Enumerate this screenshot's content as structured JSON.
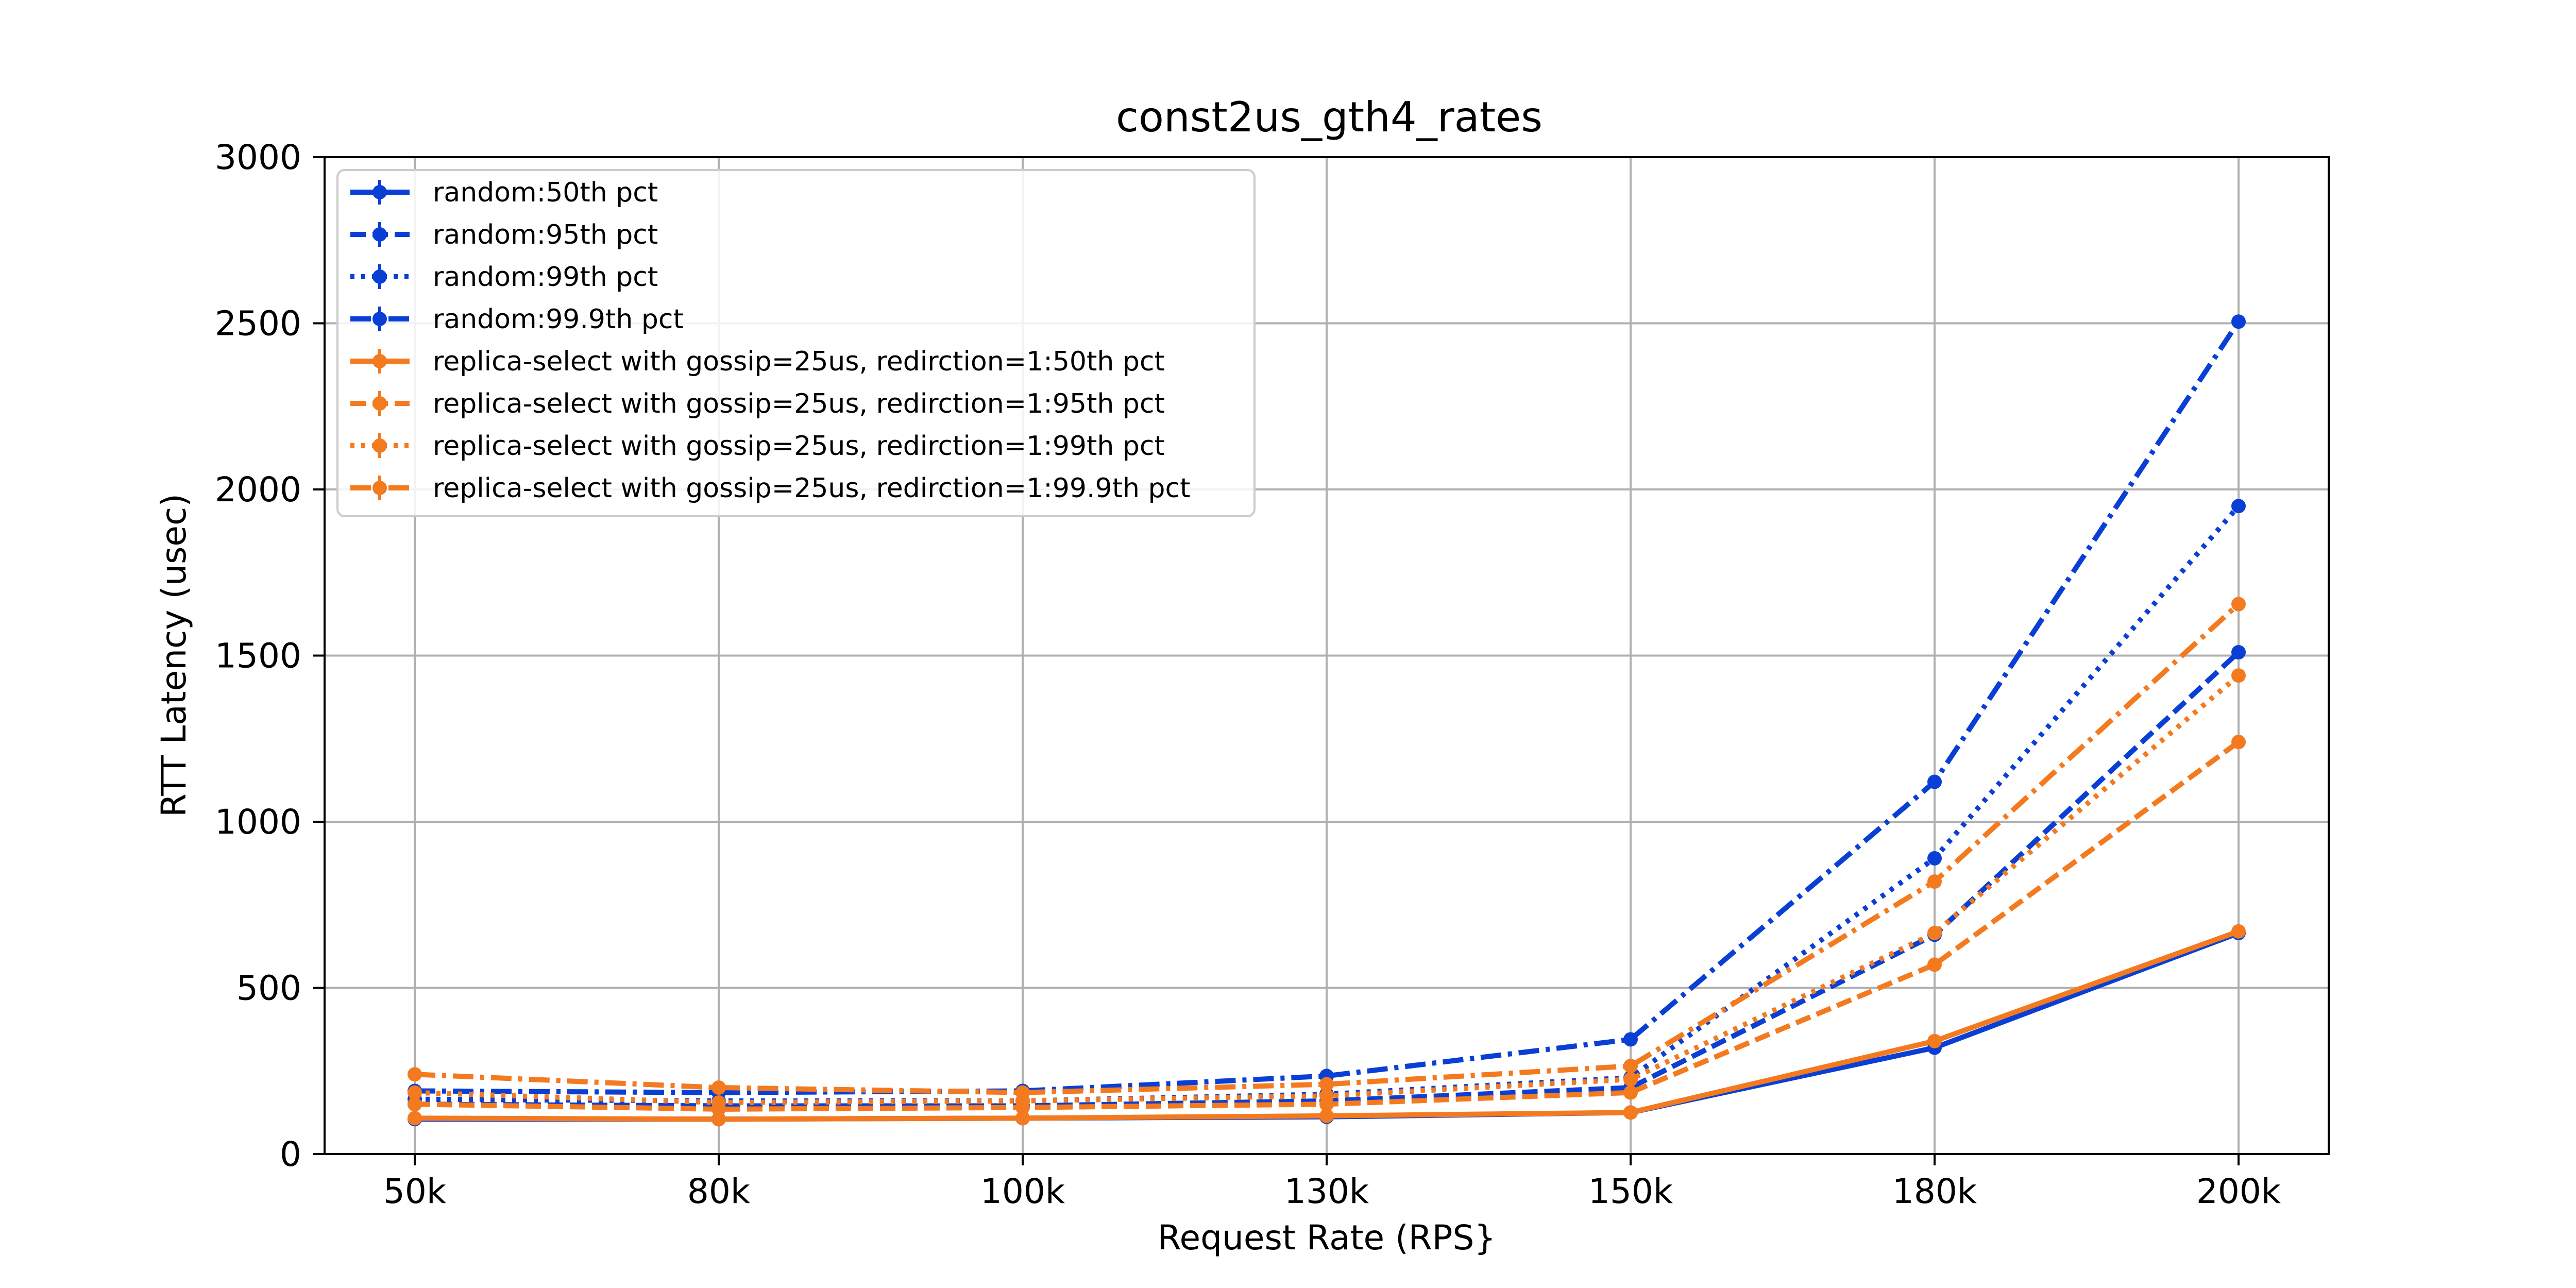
{
  "colors": {
    "random": "#0a3fd6",
    "replica": "#f47a1f",
    "grid": "#b0b0b0"
  },
  "chart_data": {
    "type": "line",
    "title": "const2us_gth4_rates",
    "xlabel": "Request Rate (RPS}",
    "ylabel": "RTT Latency (usec)",
    "categories": [
      "50k",
      "80k",
      "100k",
      "130k",
      "150k",
      "180k",
      "200k"
    ],
    "ylim": [
      0,
      3000
    ],
    "yticks": [
      0,
      500,
      1000,
      1500,
      2000,
      2500,
      3000
    ],
    "grid": true,
    "legend_position": "top-left",
    "series": [
      {
        "name": "random:50th pct",
        "group": "random",
        "dash": "solid",
        "values": [
          105,
          105,
          108,
          112,
          125,
          320,
          665
        ]
      },
      {
        "name": "random:95th pct",
        "group": "random",
        "dash": "dashed",
        "values": [
          150,
          145,
          145,
          160,
          200,
          660,
          1510
        ]
      },
      {
        "name": "random:99th pct",
        "group": "random",
        "dash": "dotted",
        "values": [
          165,
          160,
          160,
          180,
          230,
          890,
          1950
        ]
      },
      {
        "name": "random:99.9th pct",
        "group": "random",
        "dash": "dashdot",
        "values": [
          190,
          185,
          190,
          235,
          345,
          1120,
          2505
        ]
      },
      {
        "name": "replica-select with gossip=25us, redirction=1:50th pct",
        "group": "replica",
        "dash": "solid",
        "values": [
          108,
          105,
          108,
          115,
          125,
          340,
          670
        ]
      },
      {
        "name": "replica-select with gossip=25us, redirction=1:95th pct",
        "group": "replica",
        "dash": "dashed",
        "values": [
          150,
          135,
          140,
          150,
          185,
          570,
          1240
        ]
      },
      {
        "name": "replica-select with gossip=25us, redirction=1:99th pct",
        "group": "replica",
        "dash": "dotted",
        "values": [
          185,
          155,
          160,
          175,
          225,
          665,
          1440
        ]
      },
      {
        "name": "replica-select with gossip=25us, redirction=1:99.9th pct",
        "group": "replica",
        "dash": "dashdot",
        "values": [
          240,
          200,
          185,
          210,
          265,
          820,
          1655
        ]
      }
    ]
  }
}
